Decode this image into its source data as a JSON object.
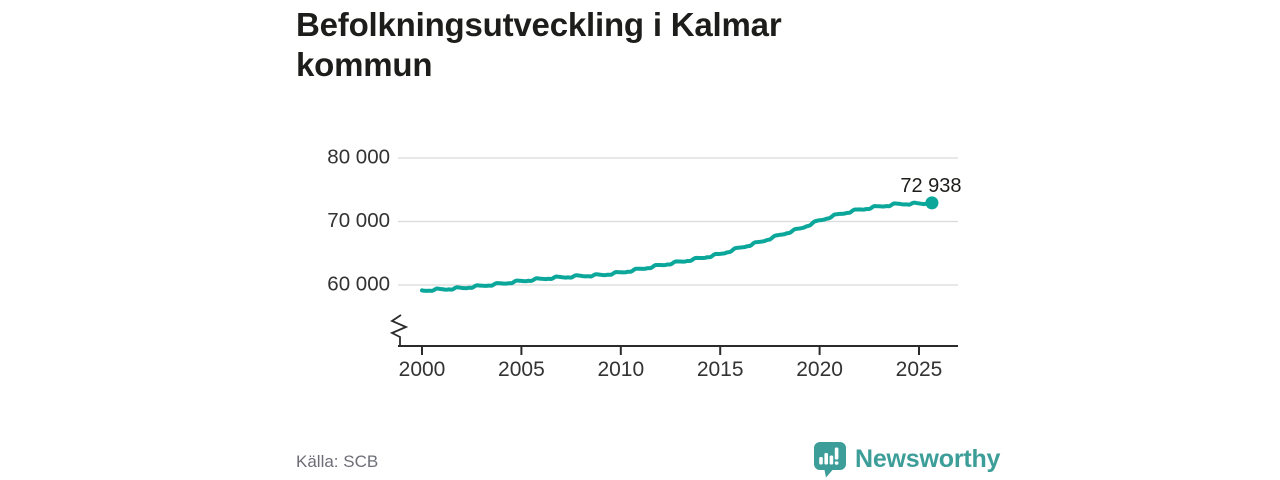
{
  "title": "Befolkningsutveckling i Kalmar kommun",
  "footer": {
    "source": "Källa: SCB",
    "brand": "Newsworthy"
  },
  "colors": {
    "accent": "#0ca79b",
    "brand": "#3d9e99",
    "title": "#1d1d1b",
    "axis": "#2b2b2b",
    "tick_text": "#333333",
    "grid": "#dadada",
    "muted": "#6e6e78",
    "background": "#ffffff"
  },
  "chart_data": {
    "type": "line",
    "title": "Befolkningsutveckling i Kalmar kommun",
    "xlabel": "",
    "ylabel": "",
    "x_ticks": [
      2000,
      2005,
      2010,
      2015,
      2020,
      2025
    ],
    "y_ticks": [
      60000,
      70000,
      80000
    ],
    "y_tick_labels": [
      "60 000",
      "70 000",
      "80 000"
    ],
    "ylim": [
      60000,
      80000
    ],
    "axis_break": true,
    "grid": "horizontal",
    "legend": "none",
    "years": [
      2000,
      2001,
      2002,
      2003,
      2004,
      2005,
      2006,
      2007,
      2008,
      2009,
      2010,
      2011,
      2012,
      2013,
      2014,
      2015,
      2016,
      2017,
      2018,
      2019,
      2020,
      2021,
      2022,
      2023,
      2024,
      2025
    ],
    "values": [
      59150,
      59350,
      59550,
      59900,
      60250,
      60650,
      61000,
      61250,
      61450,
      61600,
      62000,
      62550,
      63150,
      63700,
      64250,
      64900,
      65900,
      66800,
      67900,
      68900,
      70200,
      71200,
      71900,
      72400,
      72800,
      72850
    ],
    "end_point": {
      "year": 2025.65,
      "value": 72938,
      "label": "72 938"
    }
  }
}
